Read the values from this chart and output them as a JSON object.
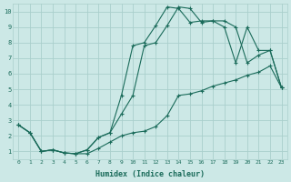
{
  "xlabel": "Humidex (Indice chaleur)",
  "ylabel": "",
  "bg_color": "#cce8e6",
  "grid_color": "#aacfcc",
  "line_color": "#1a6b5a",
  "xlim": [
    -0.5,
    23.5
  ],
  "ylim": [
    0.5,
    10.5
  ],
  "xticks": [
    0,
    1,
    2,
    3,
    4,
    5,
    6,
    7,
    8,
    9,
    10,
    11,
    12,
    13,
    14,
    15,
    16,
    17,
    18,
    19,
    20,
    21,
    22,
    23
  ],
  "yticks": [
    1,
    2,
    3,
    4,
    5,
    6,
    7,
    8,
    9,
    10
  ],
  "line1_x": [
    0,
    1,
    2,
    3,
    4,
    5,
    6,
    7,
    8,
    9,
    10,
    11,
    12,
    13,
    14,
    15,
    16,
    17,
    18,
    19,
    20,
    21,
    22,
    23
  ],
  "line1_y": [
    2.7,
    2.2,
    1.0,
    1.1,
    0.9,
    0.85,
    0.85,
    1.2,
    1.6,
    2.0,
    2.2,
    2.3,
    2.6,
    3.3,
    4.6,
    4.7,
    4.9,
    5.2,
    5.4,
    5.6,
    5.9,
    6.1,
    6.5,
    5.1
  ],
  "line2_x": [
    0,
    1,
    2,
    3,
    4,
    5,
    6,
    7,
    8,
    9,
    10,
    11,
    12,
    13,
    14,
    15,
    16,
    17,
    18,
    19,
    20,
    21,
    22,
    23
  ],
  "line2_y": [
    2.7,
    2.2,
    1.0,
    1.1,
    0.9,
    0.85,
    1.1,
    1.9,
    2.2,
    3.4,
    4.6,
    7.8,
    8.0,
    9.1,
    10.3,
    10.2,
    9.3,
    9.4,
    9.4,
    9.0,
    6.7,
    7.2,
    7.5,
    5.1
  ],
  "line3_x": [
    0,
    1,
    2,
    3,
    4,
    5,
    6,
    7,
    8,
    9,
    10,
    11,
    12,
    13,
    14,
    15,
    16,
    17,
    18,
    19,
    20,
    21,
    22,
    23
  ],
  "line3_y": [
    2.7,
    2.2,
    1.0,
    1.1,
    0.9,
    0.85,
    1.1,
    1.9,
    2.2,
    4.6,
    7.8,
    8.0,
    9.1,
    10.3,
    10.2,
    9.3,
    9.4,
    9.4,
    9.0,
    6.7,
    9.0,
    7.5,
    7.5,
    5.1
  ]
}
